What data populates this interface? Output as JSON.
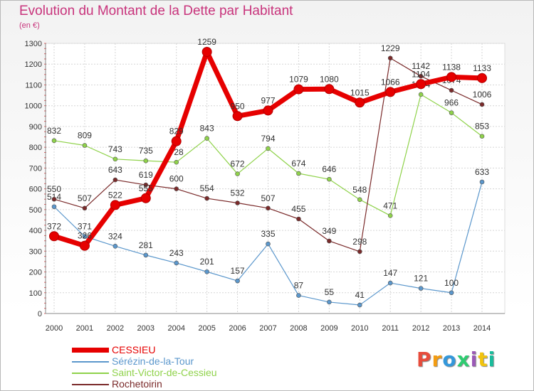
{
  "title": "Evolution du Montant de la Dette par Habitant",
  "unit": "(en €)",
  "chart_data": {
    "type": "line",
    "x": [
      "2000",
      "2001",
      "2002",
      "2003",
      "2004",
      "2005",
      "2006",
      "2007",
      "2008",
      "2009",
      "2010",
      "2011",
      "2012",
      "2013",
      "2014"
    ],
    "ylim": [
      0,
      1300
    ],
    "yticks": [
      0,
      100,
      200,
      300,
      400,
      500,
      600,
      700,
      800,
      900,
      1000,
      1100,
      1200,
      1300
    ],
    "grid": true,
    "legend_position": "bottom-left",
    "series": [
      {
        "name": "CESSIEU",
        "color": "#e60000",
        "values": [
          372,
          326,
          522,
          555,
          829,
          1259,
          950,
          977,
          1079,
          1080,
          1015,
          1066,
          1104,
          1138,
          1133
        ]
      },
      {
        "name": "Sérézin-de-la-Tour",
        "color": "#5b97cc",
        "values": [
          514,
          371,
          324,
          281,
          243,
          201,
          157,
          335,
          87,
          55,
          41,
          147,
          121,
          100,
          633
        ]
      },
      {
        "name": "Saint-Victor-de-Cessieu",
        "color": "#8fd24a",
        "values": [
          832,
          809,
          743,
          735,
          728,
          843,
          672,
          794,
          674,
          646,
          548,
          471,
          1054,
          966,
          853
        ]
      },
      {
        "name": "Rochetoirin",
        "color": "#7a2a2a",
        "values": [
          550,
          507,
          643,
          619,
          600,
          554,
          532,
          507,
          455,
          349,
          298,
          1229,
          1142,
          1074,
          1006
        ]
      }
    ]
  },
  "logo": {
    "text": "Proxiti",
    "colors": [
      "#e74c3c",
      "#f39c12",
      "#3498db",
      "#2ecc71",
      "#9b59b6",
      "#f1c40f",
      "#1abc9c"
    ]
  }
}
